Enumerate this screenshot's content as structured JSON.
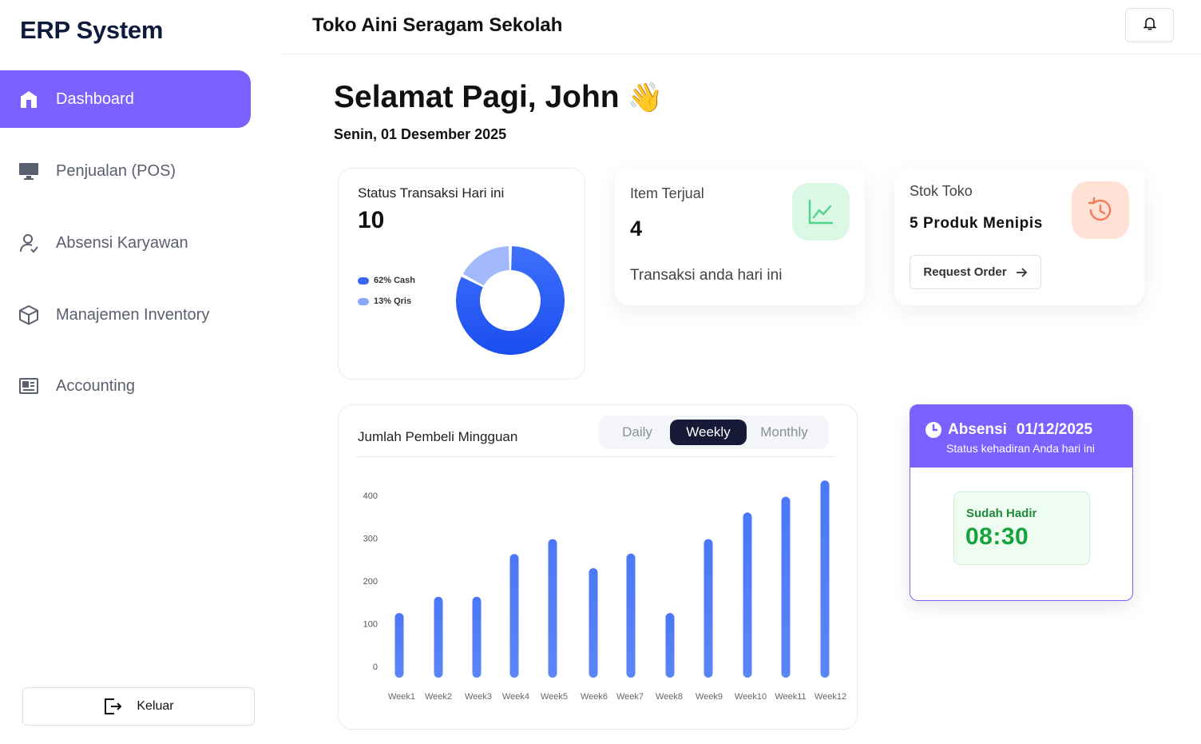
{
  "sidebar": {
    "brand": "ERP System",
    "items": [
      {
        "label": "Dashboard",
        "icon": "store-icon",
        "active": true
      },
      {
        "label": "Penjualan (POS)",
        "icon": "monitor-icon"
      },
      {
        "label": "Absensi Karyawan",
        "icon": "user-check-icon"
      },
      {
        "label": "Manajemen Inventory",
        "icon": "box-icon"
      },
      {
        "label": "Accounting",
        "icon": "ledger-icon"
      }
    ],
    "logout_label": "Keluar"
  },
  "header": {
    "store_name": "Toko Aini Seragam Sekolah"
  },
  "greeting": {
    "text": "Selamat Pagi, John",
    "emoji": "👋",
    "date": "Senin, 01 Desember 2025"
  },
  "status_card": {
    "title": "Status Transaksi Hari ini",
    "count": "10",
    "legend": [
      {
        "label": "62% Cash",
        "color": "#3a66f5"
      },
      {
        "label": "13% Qris",
        "color": "#8aa8fb"
      }
    ]
  },
  "item_card": {
    "title": "Item Terjual",
    "value": "4",
    "subtitle": "Transaksi anda hari ini",
    "icon": "chart-line-icon"
  },
  "stock_card": {
    "title": "Stok Toko",
    "value": "5 Produk Menipis",
    "button_label": "Request Order",
    "icon": "history-icon"
  },
  "weekly_chart": {
    "title": "Jumlah Pembeli Mingguan",
    "tabs": [
      {
        "label": "Daily",
        "active": false
      },
      {
        "label": "Weekly",
        "active": true
      },
      {
        "label": "Monthly",
        "active": false
      }
    ]
  },
  "attendance": {
    "title": "Absensi",
    "date": "01/12/2025",
    "subtitle": "Status kehadiran Anda hari ini",
    "status_label": "Sudah Hadir",
    "time": "08:30"
  },
  "chart_data": [
    {
      "type": "pie",
      "categories": [
        "Cash",
        "Qris"
      ],
      "values": [
        62,
        13
      ],
      "legend": "left"
    },
    {
      "type": "bar",
      "categories": [
        "Week1",
        "Week2",
        "Week3",
        "Week4",
        "Week5",
        "Week6",
        "Week7",
        "Week8",
        "Week9",
        "Week10",
        "Week11",
        "Week12"
      ],
      "values": [
        125,
        163,
        163,
        263,
        298,
        230,
        264,
        125,
        298,
        360,
        397,
        435
      ],
      "yticks": [
        0,
        100,
        200,
        300,
        400
      ],
      "ylim": [
        0,
        400
      ],
      "grid": false
    }
  ]
}
